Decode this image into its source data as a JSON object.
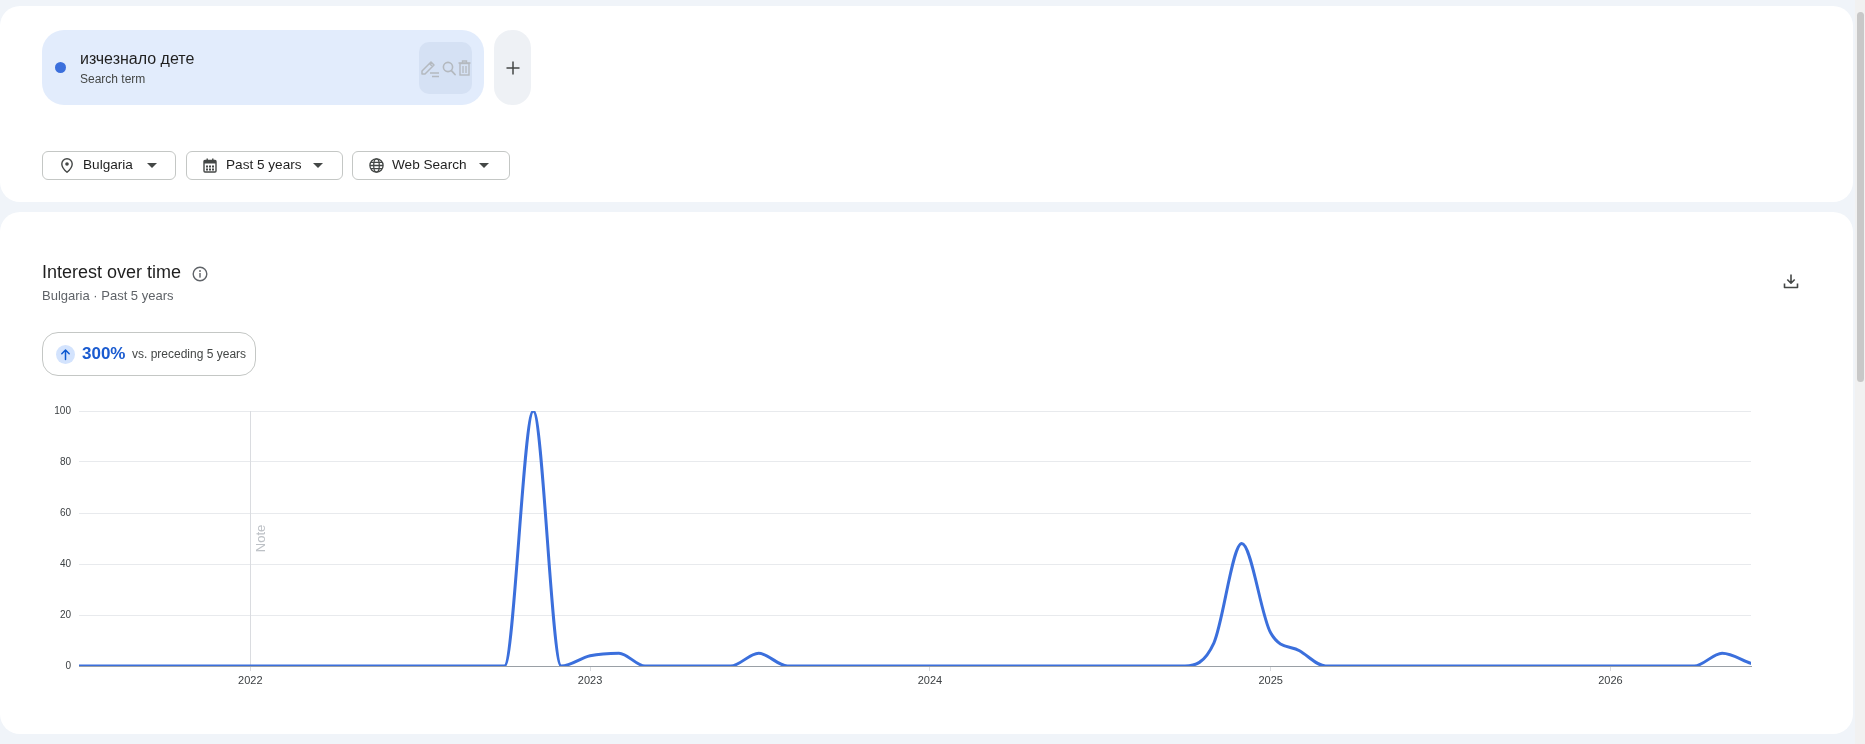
{
  "chart_data": {
    "type": "line",
    "title": "Interest over time",
    "subtitle": "Bulgaria · Past 5 years",
    "legend_title": "Search term",
    "annotations": [
      "Bulgaria",
      "Past 5 years",
      "Web Search",
      "300%",
      "vs. preceding 5 years"
    ],
    "x": [
      "2021-07",
      "2021-08",
      "2021-09",
      "2021-10",
      "2021-11",
      "2021-12",
      "2022-01",
      "2022-02",
      "2022-03",
      "2022-04",
      "2022-05",
      "2022-06",
      "2022-07",
      "2022-08",
      "2022-09",
      "2022-10",
      "2022-11",
      "2022-12",
      "2023-01",
      "2023-02",
      "2023-03",
      "2023-04",
      "2023-05",
      "2023-06",
      "2023-07",
      "2023-08",
      "2023-09",
      "2023-10",
      "2023-11",
      "2023-12",
      "2024-01",
      "2024-02",
      "2024-03",
      "2024-04",
      "2024-05",
      "2024-06",
      "2024-07",
      "2024-08",
      "2024-09",
      "2024-10",
      "2024-11",
      "2024-12",
      "2025-01",
      "2025-02",
      "2025-03",
      "2025-04",
      "2025-05",
      "2025-06",
      "2025-07",
      "2025-08",
      "2025-09",
      "2025-10",
      "2025-11",
      "2025-12",
      "2026-01",
      "2026-02",
      "2026-03",
      "2026-04",
      "2026-05",
      "2026-06"
    ],
    "series": [
      {
        "name": "изчезнало дете",
        "color": "#3b6fdc",
        "values": [
          0,
          0,
          0,
          0,
          0,
          0,
          0,
          0,
          0,
          0,
          0,
          0,
          0,
          0,
          0,
          0,
          100,
          0,
          4,
          5,
          0,
          0,
          0,
          0,
          5,
          0,
          0,
          0,
          0,
          0,
          0,
          0,
          0,
          0,
          0,
          0,
          0,
          0,
          0,
          0,
          9,
          48,
          13,
          6,
          0,
          0,
          0,
          0,
          0,
          0,
          0,
          0,
          0,
          0,
          0,
          0,
          0,
          0,
          5,
          1
        ]
      }
    ],
    "xlim": [
      "2021-07",
      "2026-06"
    ],
    "ylim": [
      0,
      100
    ],
    "xticks": [
      "2022",
      "2023",
      "2024",
      "2025",
      "2026"
    ],
    "yticks": [
      0,
      20,
      40,
      60,
      80,
      100
    ],
    "grid": "y",
    "legend": "top left",
    "ref_lines": [
      {
        "axis": "x",
        "value": "2022",
        "label": "Note"
      }
    ]
  }
}
